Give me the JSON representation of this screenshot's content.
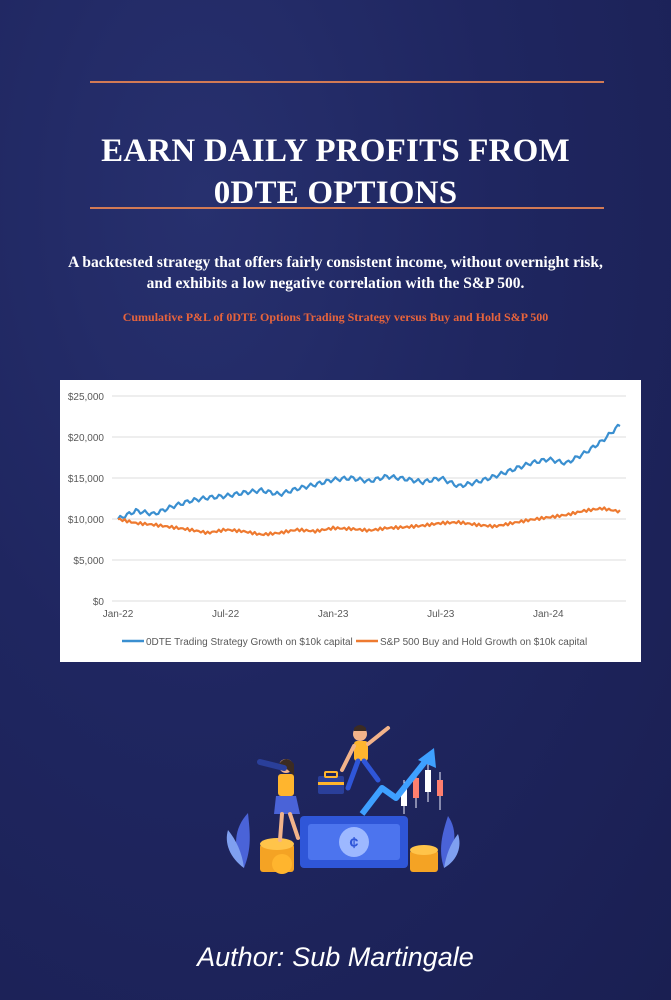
{
  "book": {
    "title_line1": "EARN DAILY PROFITS FROM",
    "title_line2": "0DTE OPTIONS",
    "subtitle_line1": "A backtested strategy that offers fairly consistent income, without overnight risk,",
    "subtitle_line2": "and exhibits a low negative correlation with the S&P 500.",
    "chart_caption": "Cumulative P&L of 0DTE Options Trading Strategy versus Buy and Hold S&P 500",
    "author_label": "Author:",
    "author_name": "Sub Martingale"
  },
  "colors": {
    "background": "#1f2660",
    "rule": "#d27a55",
    "caption": "#e8643c",
    "series_strategy": "#3a8fd0",
    "series_sp500": "#ee7a30"
  },
  "illustration": {
    "icons": [
      "woman-with-telescope-icon",
      "man-jumping-icon",
      "briefcase-icon",
      "rising-arrow-icon",
      "candlestick-chart-icon",
      "money-bill-icon",
      "coin-stack-icon",
      "leaf-icon"
    ]
  },
  "chart_data": {
    "type": "line",
    "title": "",
    "xlabel": "",
    "ylabel": "",
    "x": [
      "2022-01",
      "2022-02",
      "2022-03",
      "2022-04",
      "2022-05",
      "2022-06",
      "2022-07",
      "2022-08",
      "2022-09",
      "2022-10",
      "2022-11",
      "2022-12",
      "2023-01",
      "2023-02",
      "2023-03",
      "2023-04",
      "2023-05",
      "2023-06",
      "2023-07",
      "2023-08",
      "2023-09",
      "2023-10",
      "2023-11",
      "2023-12",
      "2024-01",
      "2024-02",
      "2024-03",
      "2024-04",
      "2024-05"
    ],
    "x_ticks": [
      "Jan-22",
      "Jul-22",
      "Jan-23",
      "Jul-23",
      "Jan-24"
    ],
    "y_ticks": [
      "$0",
      "$5,000",
      "$10,000",
      "$15,000",
      "$20,000",
      "$25,000"
    ],
    "ylim": [
      0,
      25000
    ],
    "grid": true,
    "legend": "bottom",
    "series": [
      {
        "name": "0DTE Trading Strategy Growth on $10k capital",
        "values": [
          10000,
          11000,
          10600,
          11500,
          12200,
          12600,
          12800,
          13200,
          13500,
          13000,
          13700,
          14200,
          14800,
          15000,
          14600,
          15200,
          14900,
          14500,
          15000,
          14000,
          14500,
          15200,
          16000,
          16800,
          17300,
          16800,
          18000,
          19500,
          21500
        ]
      },
      {
        "name": "S&P 500 Buy and Hold Growth on $10k capital",
        "values": [
          10000,
          9500,
          9300,
          9000,
          8700,
          8300,
          8700,
          8500,
          8100,
          8300,
          8700,
          8500,
          8900,
          8800,
          8600,
          8900,
          9000,
          9200,
          9500,
          9600,
          9300,
          9100,
          9500,
          9900,
          10200,
          10500,
          11000,
          11300,
          10900
        ]
      }
    ]
  }
}
